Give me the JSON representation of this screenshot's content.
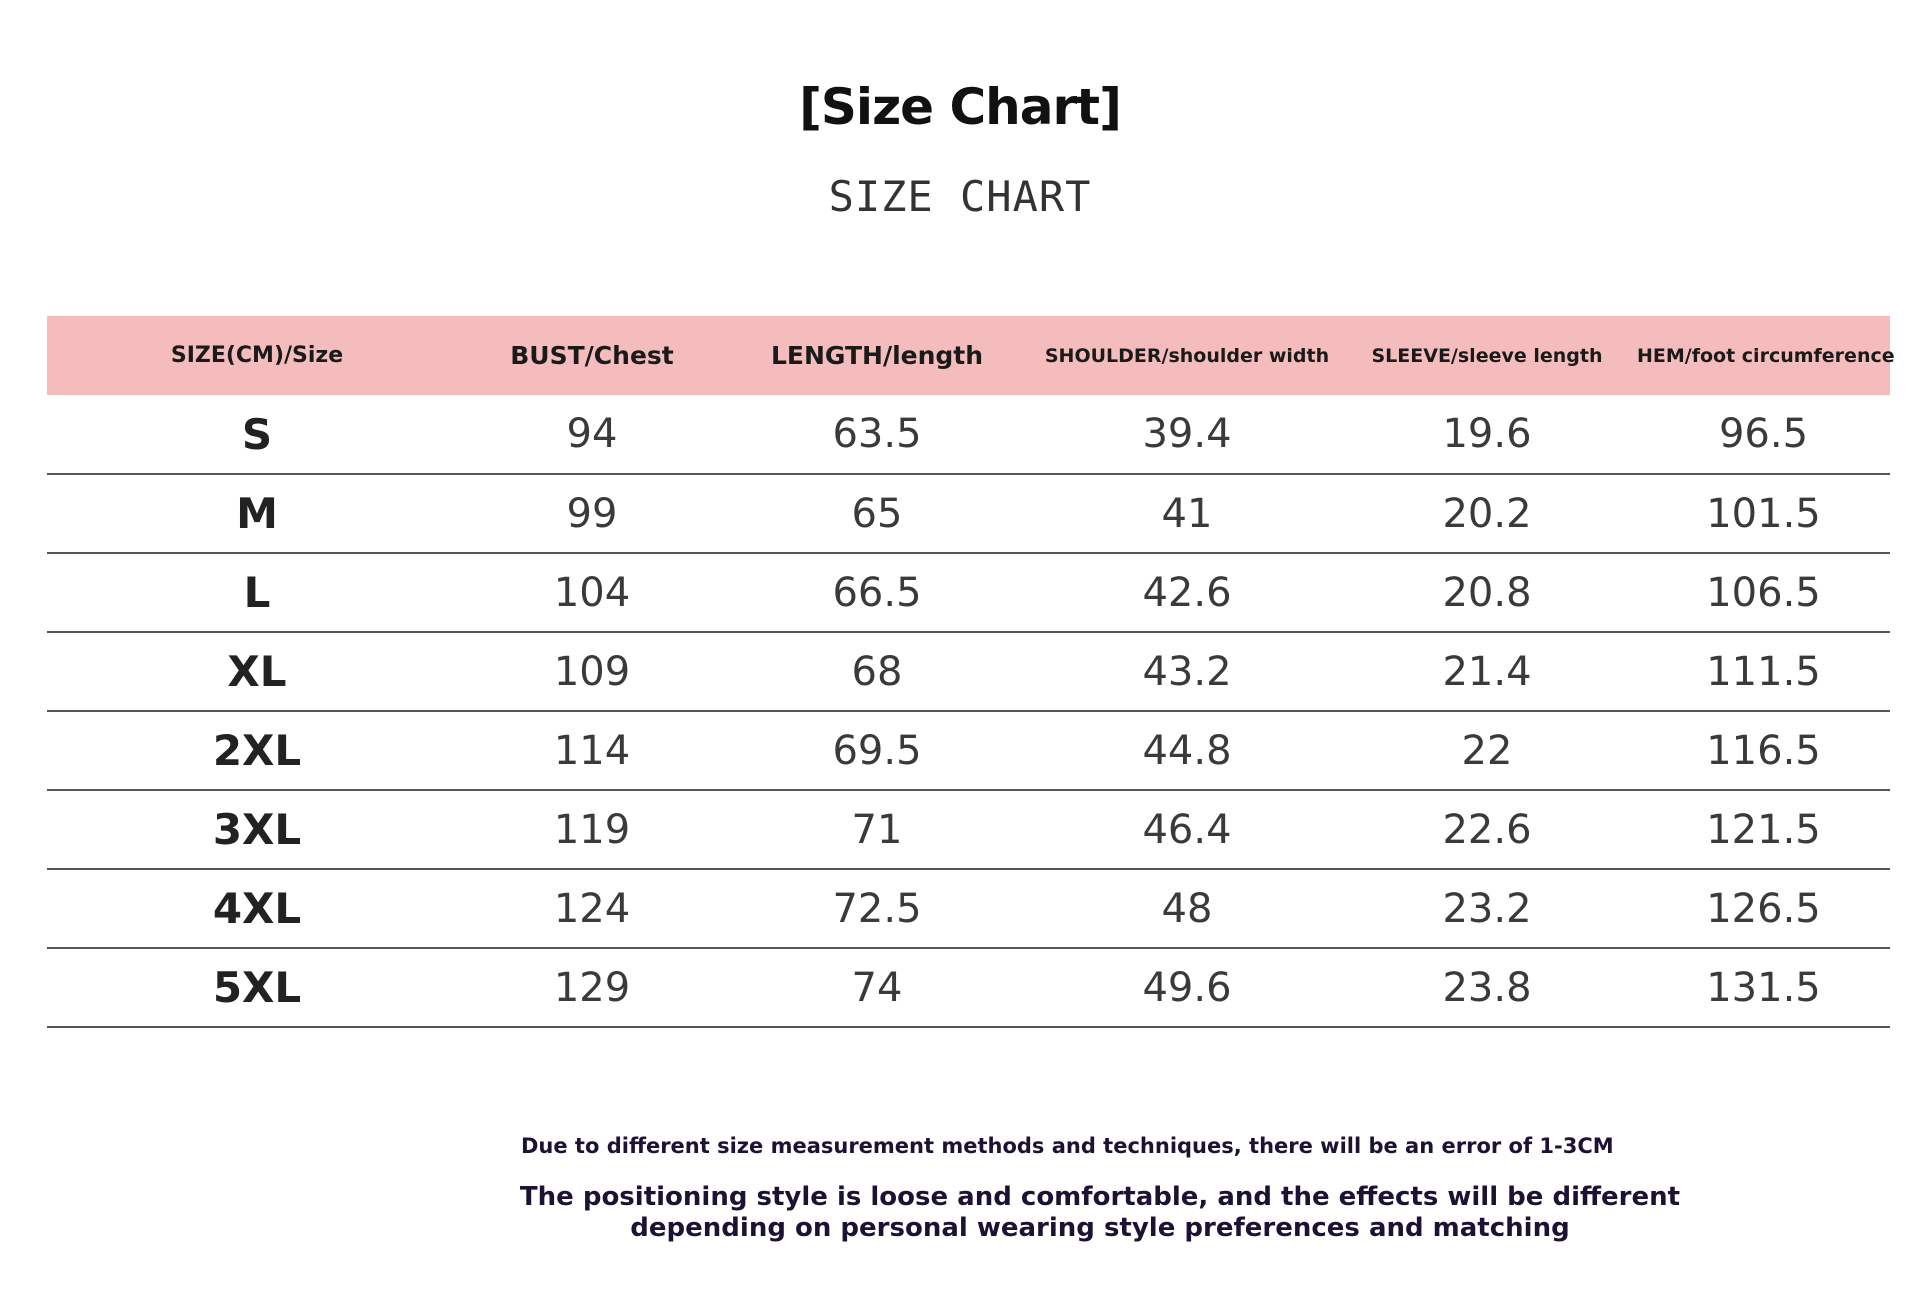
{
  "title": "[Size Chart]",
  "subtitle": "SIZE CHART",
  "table": {
    "headers": [
      "SIZE(CM)/Size",
      "BUST/Chest",
      "LENGTH/length",
      "SHOULDER/shoulder width",
      "SLEEVE/sleeve length",
      "HEM/foot circumference"
    ],
    "rows": [
      [
        "S",
        "94",
        "63.5",
        "39.4",
        "19.6",
        "96.5"
      ],
      [
        "M",
        "99",
        "65",
        "41",
        "20.2",
        "101.5"
      ],
      [
        "L",
        "104",
        "66.5",
        "42.6",
        "20.8",
        "106.5"
      ],
      [
        "XL",
        "109",
        "68",
        "43.2",
        "21.4",
        "111.5"
      ],
      [
        "2XL",
        "114",
        "69.5",
        "44.8",
        "22",
        "116.5"
      ],
      [
        "3XL",
        "119",
        "71",
        "46.4",
        "22.6",
        "121.5"
      ],
      [
        "4XL",
        "124",
        "72.5",
        "48",
        "23.2",
        "126.5"
      ],
      [
        "5XL",
        "129",
        "74",
        "49.6",
        "23.8",
        "131.5"
      ]
    ]
  },
  "notes": {
    "error_note": "Due to different size measurement methods and techniques, there will be an error of 1-3CM",
    "style_note": "The positioning style is loose and comfortable, and the effects will be different depending on personal wearing style preferences and matching"
  },
  "colors": {
    "header_background": "#f4bcbc",
    "note_text": "#1d1233"
  }
}
